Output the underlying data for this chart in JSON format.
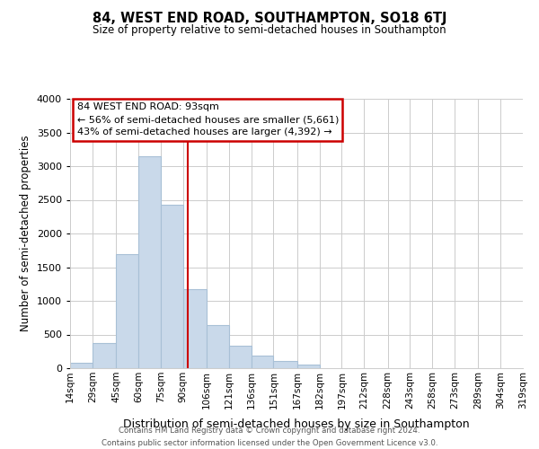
{
  "title": "84, WEST END ROAD, SOUTHAMPTON, SO18 6TJ",
  "subtitle": "Size of property relative to semi-detached houses in Southampton",
  "xlabel": "Distribution of semi-detached houses by size in Southampton",
  "ylabel": "Number of semi-detached properties",
  "footer1": "Contains HM Land Registry data © Crown copyright and database right 2024.",
  "footer2": "Contains public sector information licensed under the Open Government Licence v3.0.",
  "annotation_title": "84 WEST END ROAD: 93sqm",
  "annotation_line1": "← 56% of semi-detached houses are smaller (5,661)",
  "annotation_line2": "43% of semi-detached houses are larger (4,392) →",
  "property_size": 93,
  "bar_color": "#c9d9ea",
  "bar_edge_color": "#a8c0d6",
  "vline_color": "#cc0000",
  "vline_x": 93,
  "xlim": [
    14,
    319
  ],
  "ylim": [
    0,
    4000
  ],
  "yticks": [
    0,
    500,
    1000,
    1500,
    2000,
    2500,
    3000,
    3500,
    4000
  ],
  "bin_edges": [
    14,
    29,
    45,
    60,
    75,
    90,
    106,
    121,
    136,
    151,
    167,
    182,
    197,
    212,
    228,
    243,
    258,
    273,
    289,
    304,
    319
  ],
  "bin_labels": [
    "14sqm",
    "29sqm",
    "45sqm",
    "60sqm",
    "75sqm",
    "90sqm",
    "106sqm",
    "121sqm",
    "136sqm",
    "151sqm",
    "167sqm",
    "182sqm",
    "197sqm",
    "212sqm",
    "228sqm",
    "243sqm",
    "258sqm",
    "273sqm",
    "289sqm",
    "304sqm",
    "319sqm"
  ],
  "bin_counts": [
    75,
    370,
    1690,
    3150,
    2430,
    1175,
    635,
    335,
    185,
    110,
    60,
    0,
    0,
    0,
    0,
    0,
    0,
    0,
    0,
    0
  ],
  "background_color": "#ffffff",
  "grid_color": "#cccccc"
}
